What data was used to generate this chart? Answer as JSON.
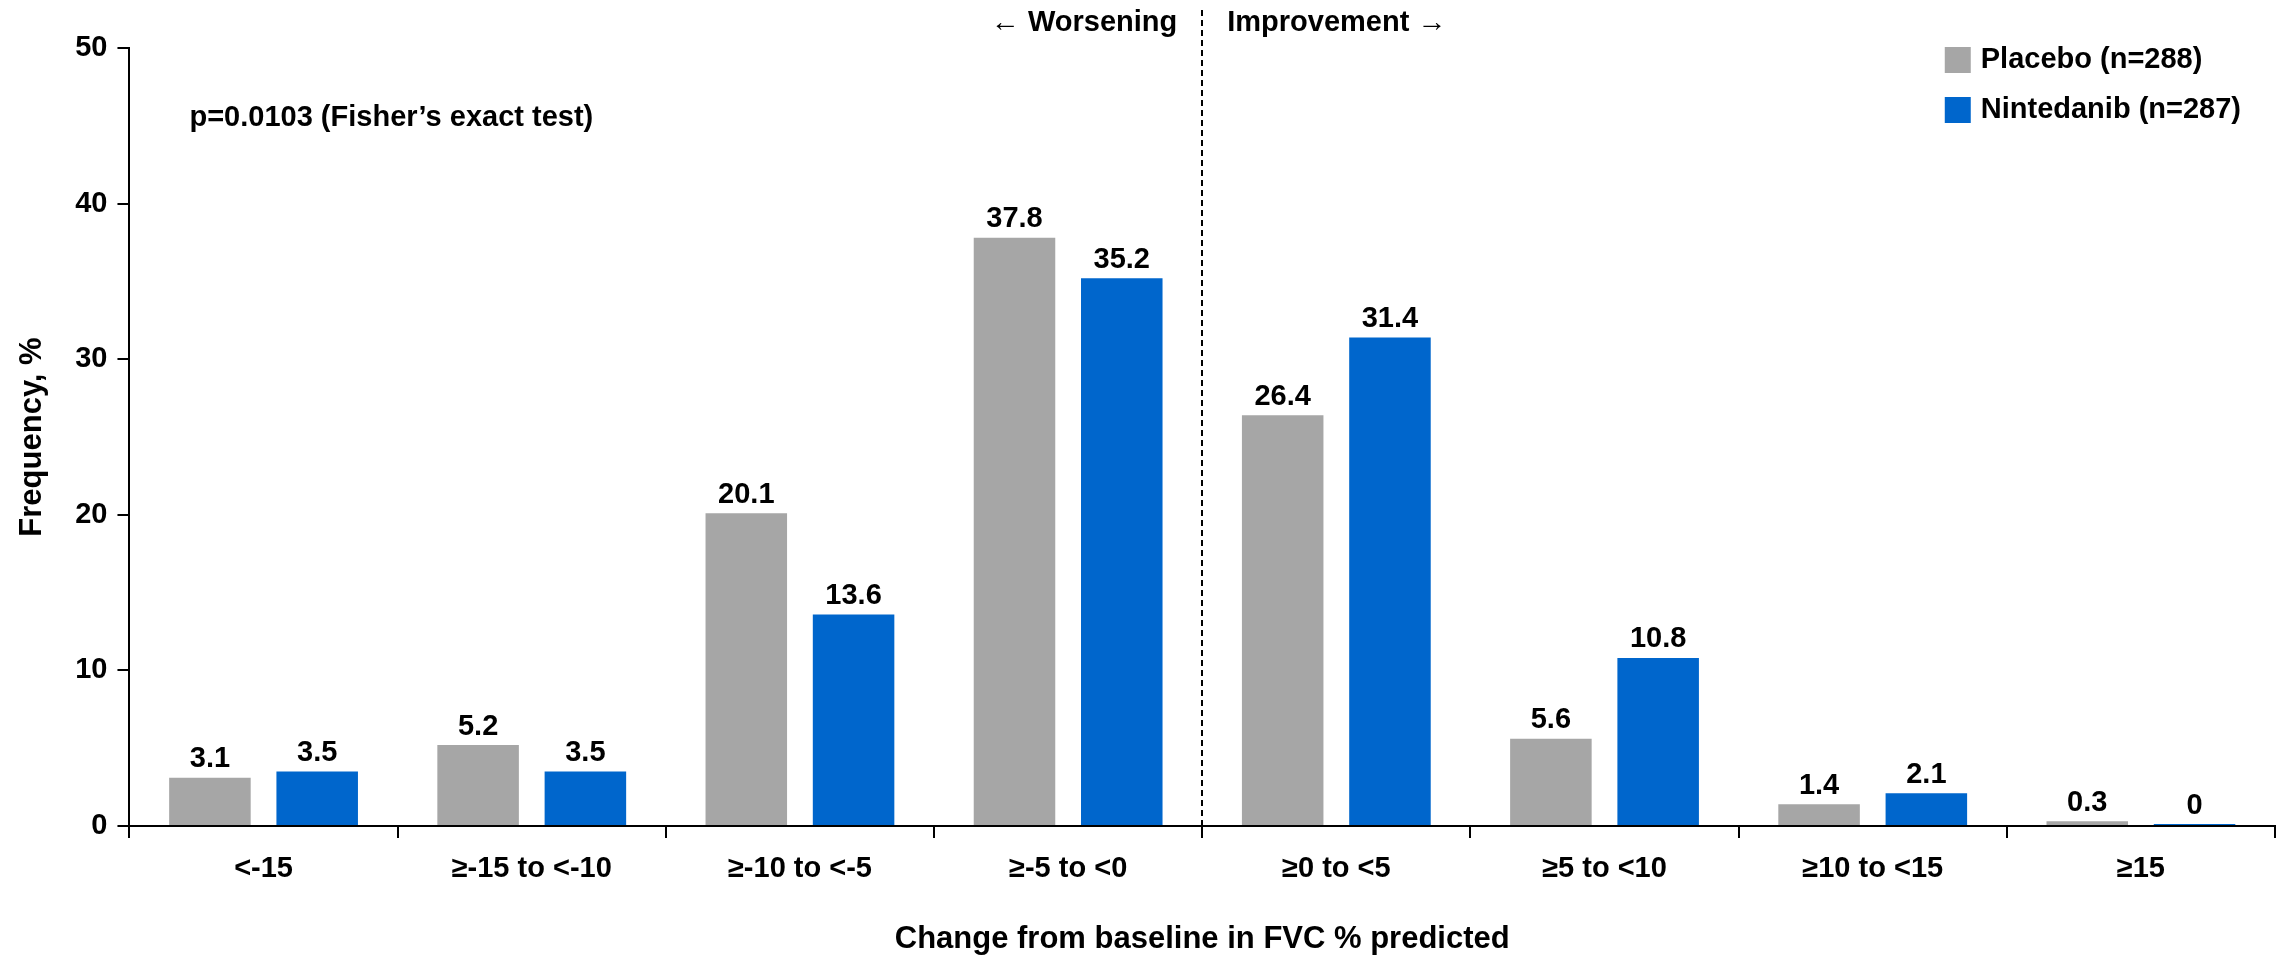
{
  "chart_data": {
    "type": "bar",
    "xlabel": "Change from baseline in FVC % predicted",
    "ylabel": "Frequency, %",
    "categories": [
      "<-15",
      "≥-15 to <-10",
      "≥-10 to <-5",
      "≥-5 to <0",
      "≥0 to <5",
      "≥5 to <10",
      "≥10 to <15",
      "≥15"
    ],
    "series": [
      {
        "name": "Placebo (n=288)",
        "color": "#a6a6a6",
        "values": [
          3.1,
          5.2,
          20.1,
          37.8,
          26.4,
          5.6,
          1.4,
          0.3
        ]
      },
      {
        "name": "Nintedanib (n=287)",
        "color": "#0066cc",
        "values": [
          3.5,
          3.5,
          13.6,
          35.2,
          31.4,
          10.8,
          2.1,
          0
        ]
      }
    ],
    "ylim": [
      0,
      50
    ],
    "yticks": [
      0,
      10,
      20,
      30,
      40,
      50
    ],
    "grid": false,
    "legend": "top right",
    "data_labels": true,
    "annotations": [
      "p=0.0103 (Fisher’s exact test)",
      "← Worsening",
      "Improvement →"
    ]
  }
}
